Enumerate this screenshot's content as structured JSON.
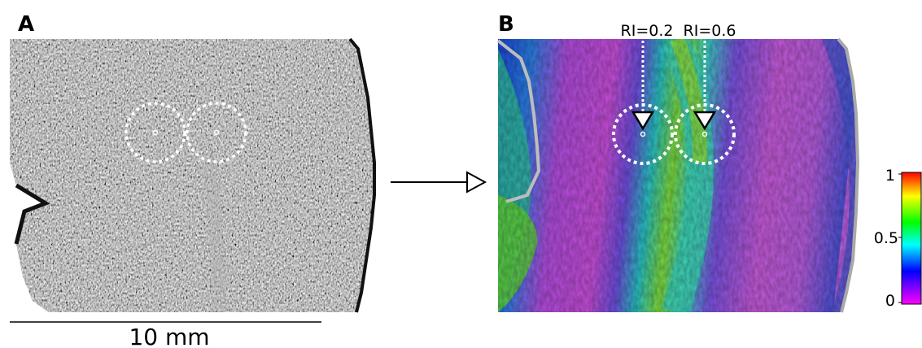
{
  "panel_a": {
    "letter": "A"
  },
  "panel_b": {
    "letter": "B",
    "markers": [
      {
        "label": "RI=0.2"
      },
      {
        "label": "RI=0.6"
      }
    ]
  },
  "scale_bar": {
    "label": "10 mm"
  },
  "colorbar": {
    "ticks": [
      "1",
      "0.5",
      "0"
    ],
    "colors": [
      "#ff0000",
      "#ffff00",
      "#00ff00",
      "#00ffff",
      "#0000ff",
      "#ff00ff"
    ]
  },
  "colors": {
    "circle": "#ffffff",
    "arrow": "#000000"
  }
}
